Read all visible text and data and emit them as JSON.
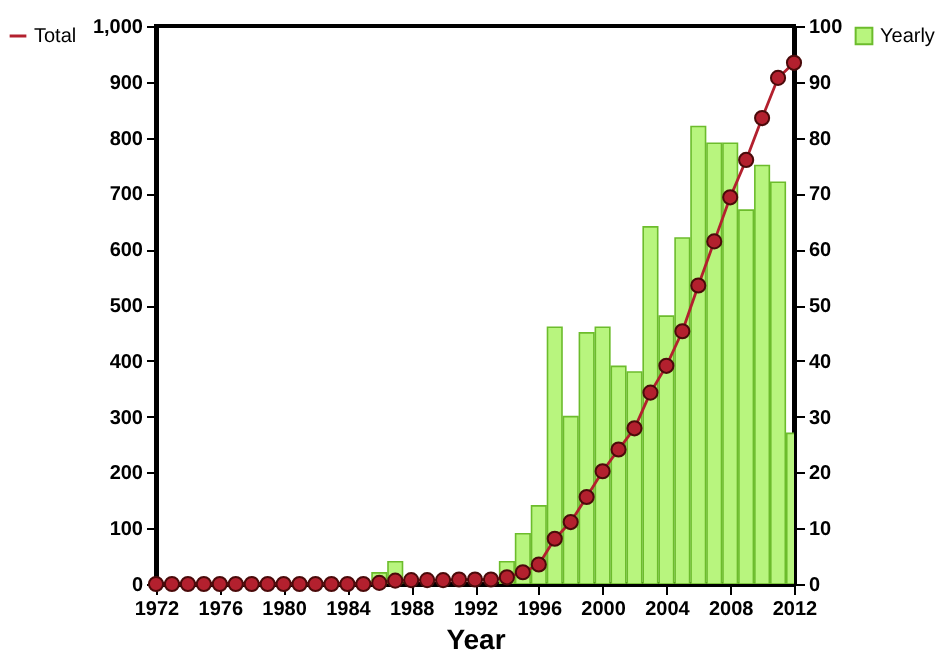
{
  "chart_data": {
    "type": "line",
    "xlabel": "Year",
    "x": [
      1972,
      1973,
      1974,
      1975,
      1976,
      1977,
      1978,
      1979,
      1980,
      1981,
      1982,
      1983,
      1984,
      1985,
      1986,
      1987,
      1988,
      1989,
      1990,
      1991,
      1992,
      1993,
      1994,
      1995,
      1996,
      1997,
      1998,
      1999,
      2000,
      2001,
      2002,
      2003,
      2004,
      2005,
      2006,
      2007,
      2008,
      2009,
      2010,
      2011,
      2012
    ],
    "series": [
      {
        "name": "Yearly",
        "type": "bar",
        "axis": "y2",
        "color": "#b8f57e",
        "values": [
          0,
          0,
          0,
          0,
          0,
          0,
          0,
          0,
          0,
          0,
          0,
          0,
          0,
          0,
          2,
          4,
          null,
          0,
          0,
          null,
          0,
          0,
          4,
          9,
          14,
          46,
          30,
          45,
          46,
          39,
          38,
          64,
          48,
          62,
          82,
          79,
          79,
          67,
          75,
          72,
          27
        ]
      },
      {
        "name": "Total",
        "color": "#b3202e",
        "values": [
          0,
          0,
          0,
          0,
          0,
          0,
          0,
          0,
          0,
          0,
          0,
          0,
          0,
          0,
          2,
          6,
          7,
          7,
          7,
          8,
          8,
          8,
          12,
          21,
          35,
          81,
          111,
          156,
          202,
          241,
          279,
          343,
          391,
          453,
          535,
          614,
          693,
          760,
          835,
          907,
          934
        ]
      }
    ],
    "xlim": [
      1972,
      2012
    ],
    "xticks": [
      1972,
      1976,
      1980,
      1984,
      1988,
      1992,
      1996,
      2000,
      2004,
      2008,
      2012
    ],
    "ylim": [
      0,
      1000
    ],
    "yticks": [
      0,
      100,
      200,
      300,
      400,
      500,
      600,
      700,
      800,
      900,
      {
        "value": 1000,
        "label": "1,000"
      }
    ],
    "y2lim": [
      0,
      100
    ],
    "y2ticks": [
      0,
      10,
      20,
      30,
      40,
      50,
      60,
      70,
      80,
      90,
      100
    ],
    "marker": "circle",
    "line_style": "solid",
    "legend": "left"
  }
}
